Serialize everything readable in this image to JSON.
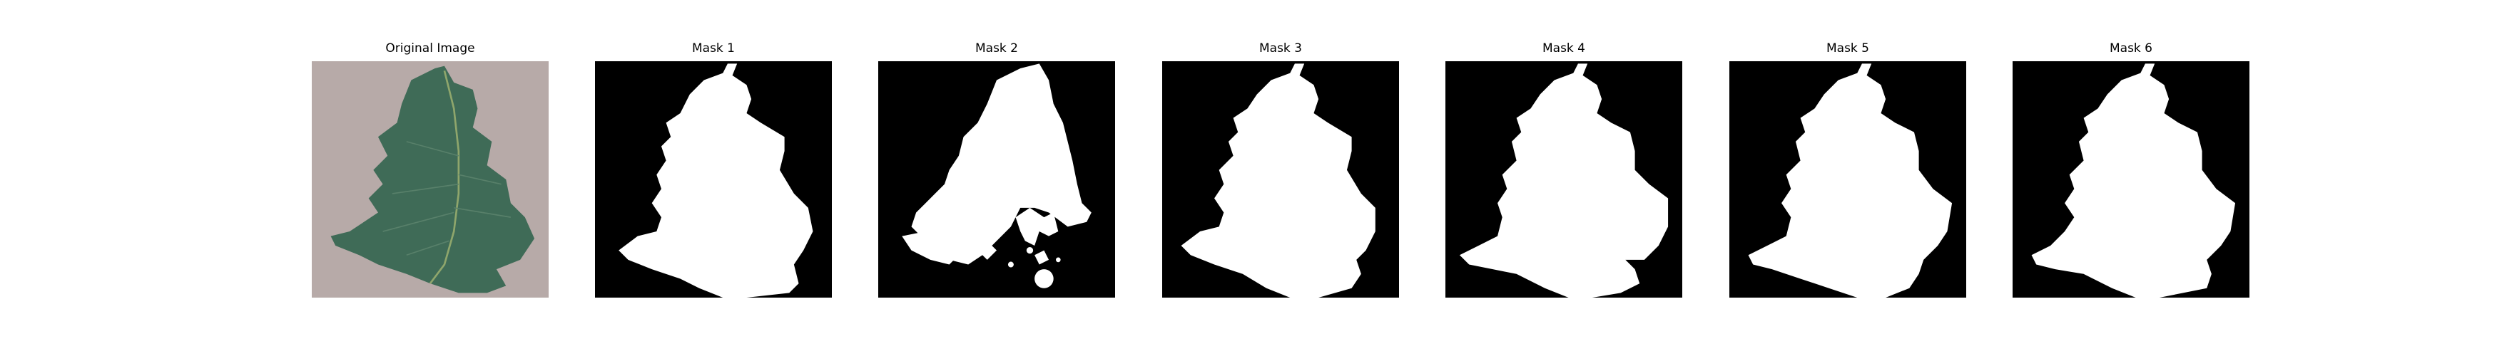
{
  "figure": {
    "panels": [
      {
        "title": "Original Image",
        "kind": "photo"
      },
      {
        "title": "Mask 1",
        "kind": "mask"
      },
      {
        "title": "Mask 2",
        "kind": "mask"
      },
      {
        "title": "Mask 3",
        "kind": "mask"
      },
      {
        "title": "Mask 4",
        "kind": "mask"
      },
      {
        "title": "Mask 5",
        "kind": "mask"
      },
      {
        "title": "Mask 6",
        "kind": "mask"
      }
    ]
  },
  "colors": {
    "background": "#ffffff",
    "mask_background": "#000000",
    "mask_foreground": "#ffffff",
    "photo_background": "#b7aaa8",
    "leaf_green": "#3f6b57",
    "leaf_vein": "#8fa66c"
  }
}
